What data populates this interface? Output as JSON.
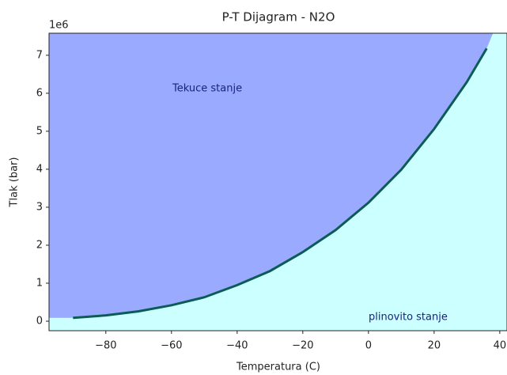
{
  "chart_data": {
    "type": "line",
    "title": "P-T Dijagram - N2O",
    "x_label": "Temperatura (C)",
    "y_label": "Tlak (bar)",
    "y_offset_label": "1e6",
    "annotations": [
      "Tekuce stanje",
      "plinovito stanje"
    ],
    "x": [
      -90,
      -80,
      -70,
      -60,
      -50,
      -40,
      -30,
      -20,
      -10,
      0,
      10,
      20,
      30,
      36
    ],
    "series": [
      {
        "name": "N2O",
        "color": "#0b5c55",
        "values": [
          88000,
          153000,
          260000,
          420000,
          630000,
          950000,
          1320000,
          1820000,
          2400000,
          3120000,
          3990000,
          5060000,
          6300000,
          7180000
        ]
      }
    ],
    "liquid_color": "#99aaff",
    "gas_color": "#ccffff",
    "xlim": [
      -97.3,
      42.2
    ],
    "ylim": [
      -250000,
      7580000
    ],
    "xticks": [
      {
        "value": -80,
        "label": "−80"
      },
      {
        "value": -60,
        "label": "−60"
      },
      {
        "value": -40,
        "label": "−40"
      },
      {
        "value": -20,
        "label": "−20"
      },
      0,
      20,
      40
    ],
    "yticks": [
      0,
      {
        "value": 1000000,
        "label": "1"
      },
      {
        "value": 2000000,
        "label": "2"
      },
      {
        "value": 3000000,
        "label": "3"
      },
      {
        "value": 4000000,
        "label": "4"
      },
      {
        "value": 5000000,
        "label": "5"
      },
      {
        "value": 6000000,
        "label": "6"
      },
      {
        "value": 7000000,
        "label": "7"
      }
    ]
  }
}
